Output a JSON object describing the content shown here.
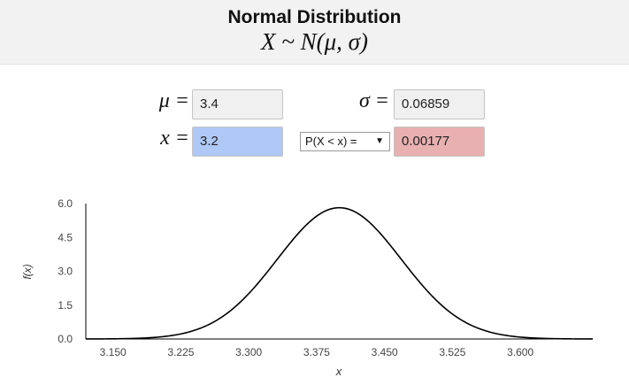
{
  "header": {
    "title": "Normal Distribution",
    "formula": "X ~ N(μ, σ)"
  },
  "params": {
    "mu_label": "μ =",
    "mu_value": "3.4",
    "sigma_label": "σ =",
    "sigma_value": "0.06859",
    "x_label": "x =",
    "x_value": "3.2",
    "probability_select": "P(X < x) =",
    "result_value": "0.00177"
  },
  "colors": {
    "x_field": "#afc8f5",
    "result_field": "#e8b0b0",
    "curve": "#000000"
  },
  "chart_data": {
    "type": "line",
    "function": "normal_pdf",
    "mu": 3.4,
    "sigma": 0.06859,
    "xlabel": "x",
    "ylabel": "f(x)",
    "xlim": [
      3.12,
      3.68
    ],
    "ylim": [
      0,
      6
    ],
    "x_ticks": [
      "3.150",
      "3.225",
      "3.300",
      "3.375",
      "3.450",
      "3.525",
      "3.600"
    ],
    "y_ticks": [
      "0.0",
      "1.5",
      "3.0",
      "4.5",
      "6.0"
    ],
    "grid": false
  }
}
